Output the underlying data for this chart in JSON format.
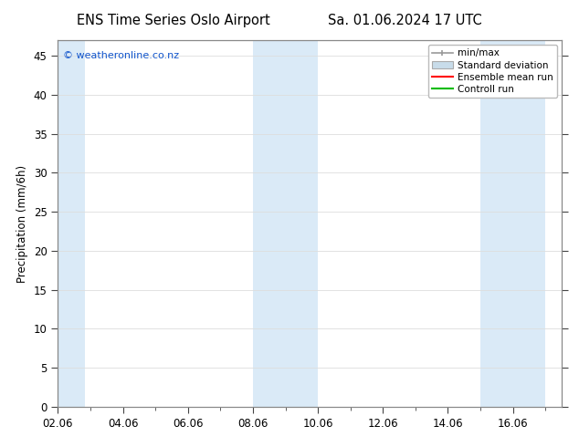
{
  "title_left": "ENS Time Series Oslo Airport",
  "title_right": "Sa. 01.06.2024 17 UTC",
  "ylabel": "Precipitation (mm/6h)",
  "watermark": "© weatheronline.co.nz",
  "background_color": "#ffffff",
  "plot_bg_color": "#ffffff",
  "shaded_bands": [
    {
      "xstart": 2.0,
      "xend": 2.833,
      "color": "#daeaf7"
    },
    {
      "xstart": 8.0,
      "xend": 10.0,
      "color": "#daeaf7"
    },
    {
      "xstart": 15.0,
      "xend": 17.0,
      "color": "#daeaf7"
    }
  ],
  "ylim": [
    0,
    47
  ],
  "yticks": [
    0,
    5,
    10,
    15,
    20,
    25,
    30,
    35,
    40,
    45
  ],
  "xlim": [
    2.0,
    17.5
  ],
  "xtick_positions": [
    2,
    4,
    6,
    8,
    10,
    12,
    14,
    16
  ],
  "xtick_labels": [
    "02.06",
    "04.06",
    "06.06",
    "08.06",
    "10.06",
    "12.06",
    "14.06",
    "16.06"
  ],
  "legend_items": [
    {
      "label": "min/max",
      "color": "#999999",
      "type": "errorbar"
    },
    {
      "label": "Standard deviation",
      "color": "#c8dcea",
      "type": "patch"
    },
    {
      "label": "Ensemble mean run",
      "color": "#ff0000",
      "type": "line"
    },
    {
      "label": "Controll run",
      "color": "#00bb00",
      "type": "line"
    }
  ],
  "grid_color": "#dddddd",
  "spine_color": "#888888",
  "tick_color": "#444444",
  "font_color": "#000000",
  "watermark_color": "#1155cc",
  "title_fontsize": 10.5,
  "axis_fontsize": 8.5,
  "tick_fontsize": 8.5
}
